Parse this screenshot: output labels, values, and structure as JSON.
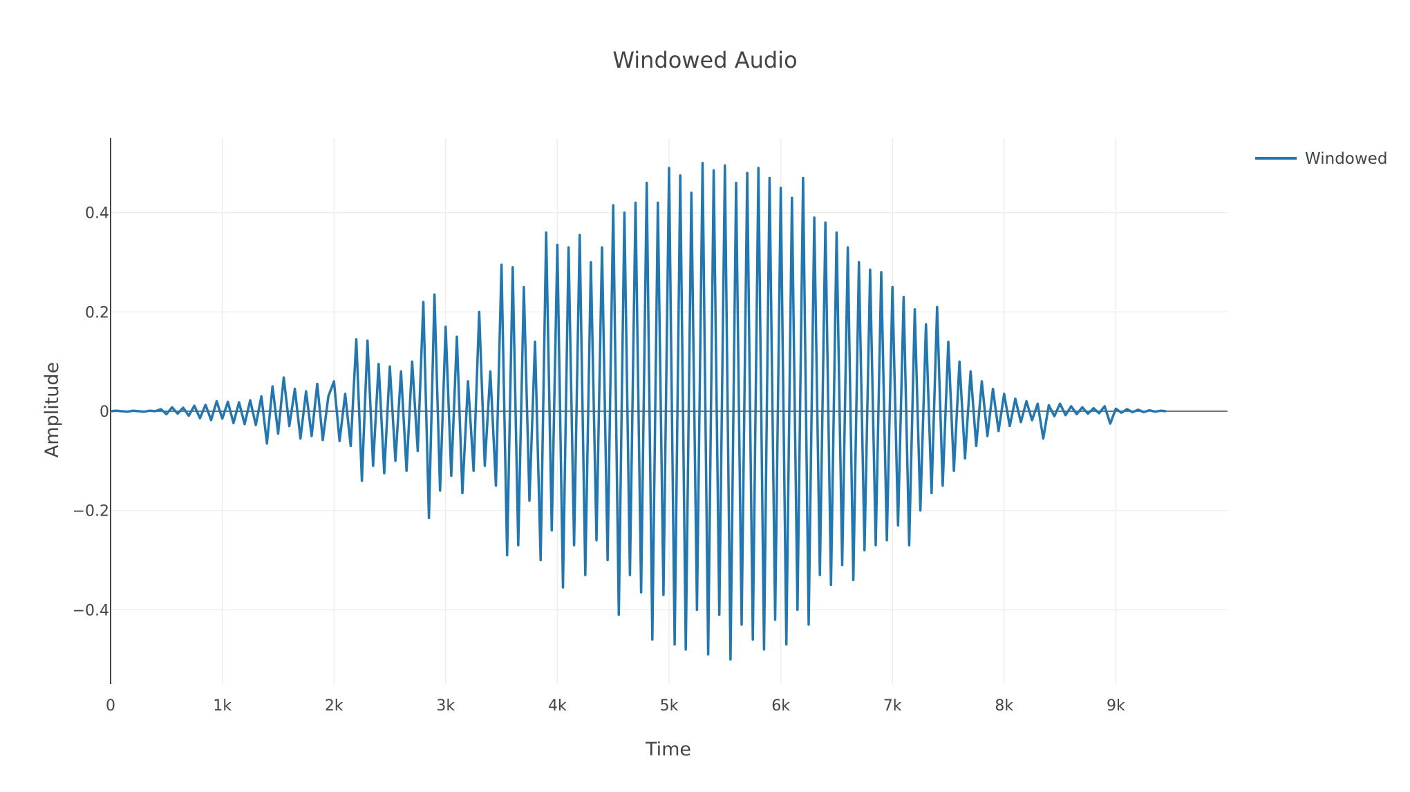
{
  "chart_data": {
    "type": "line",
    "title": "Windowed Audio",
    "xlabel": "Time",
    "ylabel": "Amplitude",
    "xlim": [
      0,
      10000
    ],
    "ylim": [
      -0.55,
      0.55
    ],
    "x_ticks": [
      0,
      1000,
      2000,
      3000,
      4000,
      5000,
      6000,
      7000,
      8000,
      9000
    ],
    "x_tick_labels": [
      "0",
      "1k",
      "2k",
      "3k",
      "4k",
      "5k",
      "6k",
      "7k",
      "8k",
      "9k"
    ],
    "y_ticks": [
      -0.4,
      -0.2,
      0,
      0.2,
      0.4
    ],
    "y_tick_labels": [
      "−0.4",
      "−0.2",
      "0",
      "0.2",
      "0.4"
    ],
    "grid": true,
    "legend_position": "top-right",
    "series": [
      {
        "name": "Windowed",
        "color": "#1f77b4",
        "x_start": 0,
        "x_step": 50,
        "values": [
          0.0,
          0.001,
          0.0,
          -0.001,
          0.001,
          0.0,
          -0.001,
          0.001,
          0.0,
          0.004,
          -0.006,
          0.008,
          -0.005,
          0.007,
          -0.009,
          0.011,
          -0.014,
          0.013,
          -0.018,
          0.02,
          -0.015,
          0.019,
          -0.024,
          0.018,
          -0.026,
          0.022,
          -0.028,
          0.03,
          -0.065,
          0.05,
          -0.045,
          0.068,
          -0.03,
          0.045,
          -0.055,
          0.04,
          -0.05,
          0.055,
          -0.058,
          0.03,
          0.06,
          -0.06,
          0.035,
          -0.07,
          0.145,
          -0.14,
          0.142,
          -0.11,
          0.095,
          -0.125,
          0.09,
          -0.1,
          0.08,
          -0.12,
          0.1,
          -0.08,
          0.22,
          -0.215,
          0.235,
          -0.16,
          0.17,
          -0.13,
          0.15,
          -0.165,
          0.06,
          -0.12,
          0.2,
          -0.11,
          0.08,
          -0.15,
          0.295,
          -0.29,
          0.29,
          -0.27,
          0.25,
          -0.18,
          0.14,
          -0.3,
          0.36,
          -0.24,
          0.335,
          -0.355,
          0.33,
          -0.27,
          0.355,
          -0.33,
          0.3,
          -0.26,
          0.33,
          -0.3,
          0.415,
          -0.41,
          0.4,
          -0.33,
          0.42,
          -0.365,
          0.46,
          -0.46,
          0.42,
          -0.37,
          0.49,
          -0.47,
          0.475,
          -0.48,
          0.44,
          -0.4,
          0.5,
          -0.49,
          0.485,
          -0.41,
          0.495,
          -0.5,
          0.46,
          -0.43,
          0.48,
          -0.46,
          0.49,
          -0.48,
          0.47,
          -0.42,
          0.45,
          -0.47,
          0.43,
          -0.4,
          0.47,
          -0.43,
          0.39,
          -0.33,
          0.38,
          -0.35,
          0.36,
          -0.31,
          0.33,
          -0.34,
          0.3,
          -0.28,
          0.285,
          -0.27,
          0.28,
          -0.26,
          0.25,
          -0.23,
          0.23,
          -0.27,
          0.205,
          -0.2,
          0.175,
          -0.165,
          0.21,
          -0.15,
          0.14,
          -0.12,
          0.1,
          -0.095,
          0.08,
          -0.07,
          0.06,
          -0.05,
          0.045,
          -0.04,
          0.035,
          -0.03,
          0.025,
          -0.022,
          0.02,
          -0.018,
          0.015,
          -0.055,
          0.012,
          -0.01,
          0.015,
          -0.008,
          0.01,
          -0.006,
          0.008,
          -0.005,
          0.006,
          -0.004,
          0.01,
          -0.025,
          0.005,
          -0.003,
          0.004,
          -0.002,
          0.003,
          -0.002,
          0.002,
          -0.001,
          0.001,
          0.0
        ]
      }
    ]
  }
}
